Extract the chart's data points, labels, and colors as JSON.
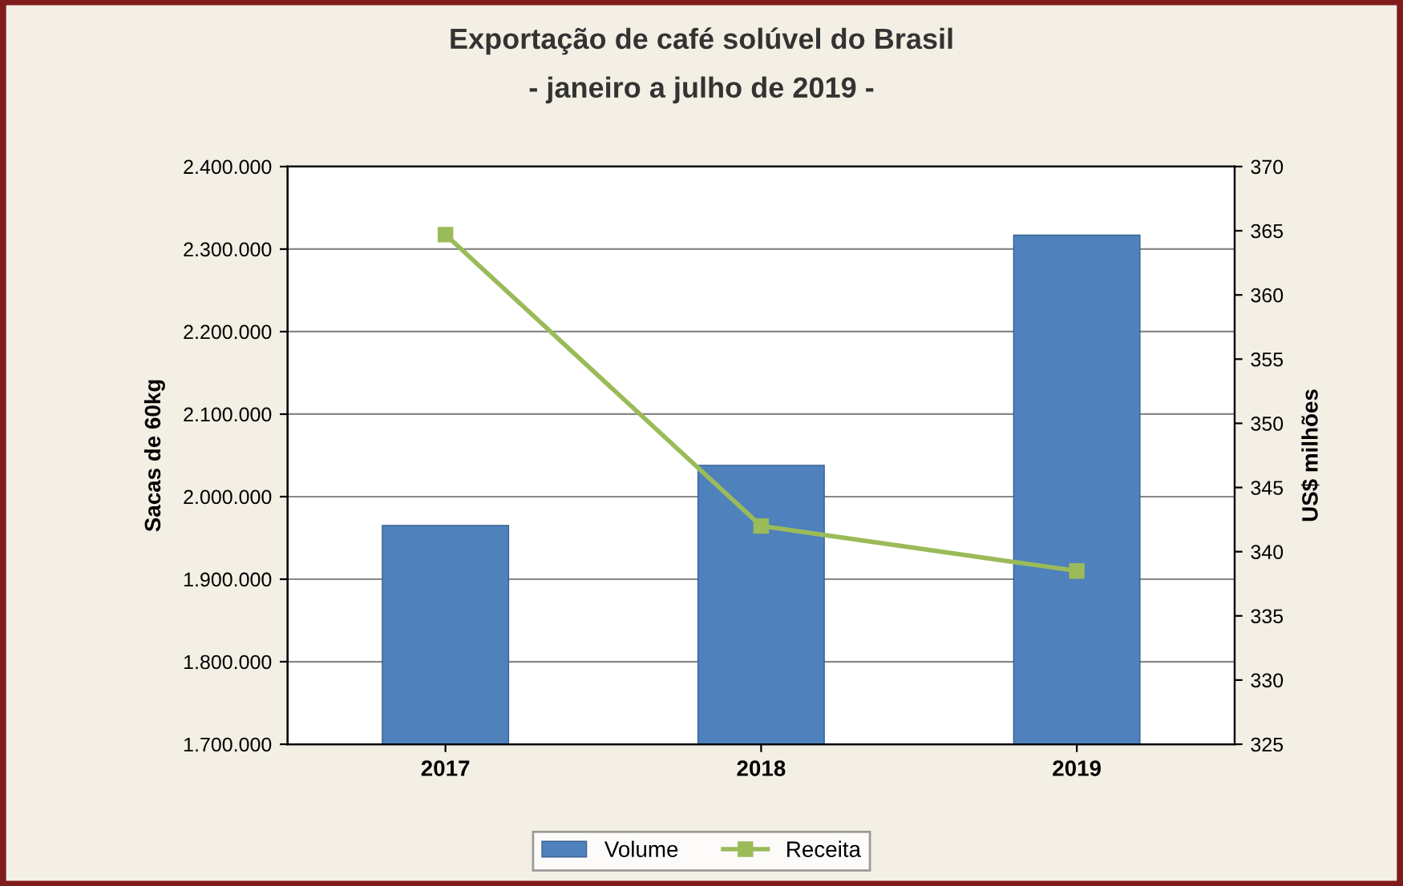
{
  "chart_data": {
    "type": "bar",
    "title": "Exportação de café solúvel do Brasil",
    "subtitle": "- janeiro a julho de 2019 -",
    "ylabel": "Sacas de 60kg",
    "y2label": "US$ milhões",
    "categories": [
      "2017",
      "2018",
      "2019"
    ],
    "series": [
      {
        "name": "Volume",
        "color": "#4f81bd",
        "values": [
          1965000,
          2038000,
          2317000
        ]
      },
      {
        "name": "Receita",
        "type": "line",
        "axis": "y2",
        "color": "#9bbb59",
        "values": [
          364.7,
          342.0,
          338.5
        ],
        "marker": "square"
      }
    ],
    "ylim": [
      1700000,
      2400000
    ],
    "yticks": [
      {
        "value": 1700000,
        "label": "1.700.000"
      },
      {
        "value": 1800000,
        "label": "1.800.000"
      },
      {
        "value": 1900000,
        "label": "1.900.000"
      },
      {
        "value": 2000000,
        "label": "2.000.000"
      },
      {
        "value": 2100000,
        "label": "2.100.000"
      },
      {
        "value": 2200000,
        "label": "2.200.000"
      },
      {
        "value": 2300000,
        "label": "2.300.000"
      },
      {
        "value": 2400000,
        "label": "2.400.000"
      }
    ],
    "y2lim": [
      325,
      370
    ],
    "y2ticks": [
      325,
      330,
      335,
      340,
      345,
      350,
      355,
      360,
      365,
      370
    ],
    "grid": "y",
    "legend": "bottom"
  }
}
